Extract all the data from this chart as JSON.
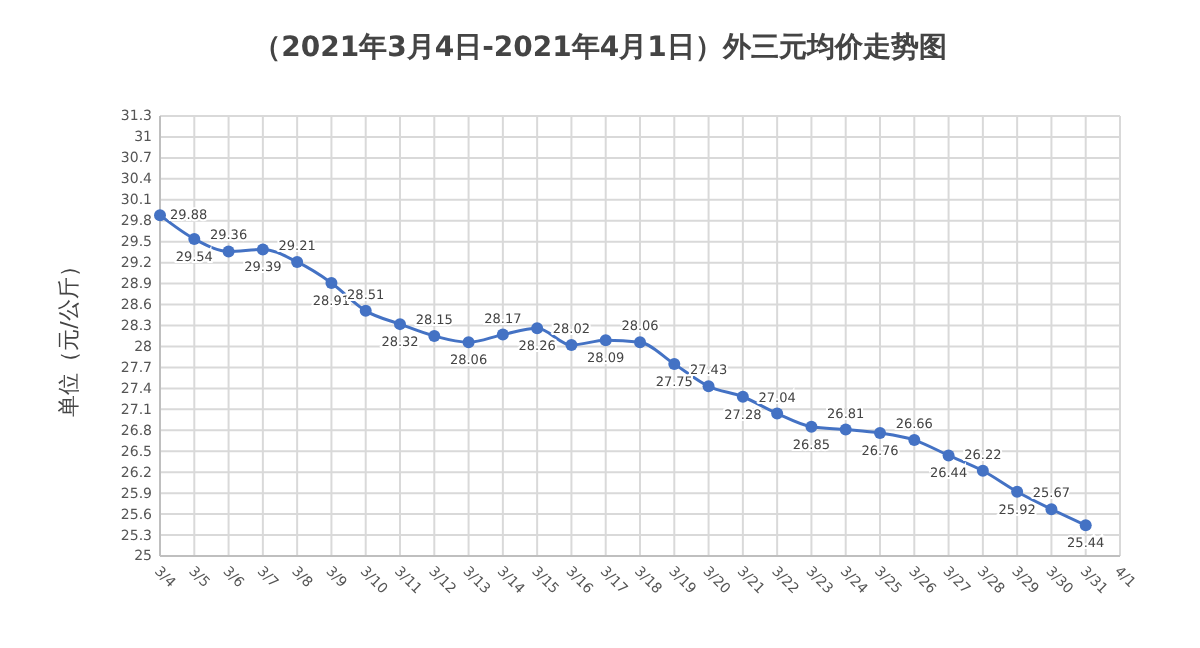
{
  "chart_data": {
    "type": "line",
    "title": "（2021年3月4日-2021年4月1日）外三元均价走势图",
    "ylabel": "单位（元/公斤）",
    "categories": [
      "3/4",
      "3/5",
      "3/6",
      "3/7",
      "3/8",
      "3/9",
      "3/10",
      "3/11",
      "3/12",
      "3/13",
      "3/14",
      "3/15",
      "3/16",
      "3/17",
      "3/18",
      "3/19",
      "3/20",
      "3/21",
      "3/22",
      "3/23",
      "3/24",
      "3/25",
      "3/26",
      "3/27",
      "3/28",
      "3/29",
      "3/30",
      "3/31",
      "4/1"
    ],
    "series": [
      {
        "color": "#4472c4",
        "values": [
          29.88,
          29.54,
          29.36,
          29.39,
          29.21,
          28.91,
          28.51,
          28.32,
          28.15,
          28.06,
          28.17,
          28.26,
          28.02,
          28.09,
          28.06,
          27.75,
          27.43,
          27.28,
          27.04,
          26.85,
          26.81,
          26.76,
          26.66,
          26.44,
          26.22,
          25.92,
          25.67,
          25.44,
          null
        ]
      }
    ],
    "ylim": [
      25,
      31.3
    ],
    "yticks": [
      25,
      25.3,
      25.6,
      25.9,
      26.2,
      26.5,
      26.8,
      27.1,
      27.4,
      27.7,
      28,
      28.3,
      28.6,
      28.9,
      29.2,
      29.5,
      29.8,
      30.1,
      30.4,
      30.7,
      31,
      31.3
    ],
    "grid": true,
    "marker": "circle",
    "data_labels": true
  }
}
